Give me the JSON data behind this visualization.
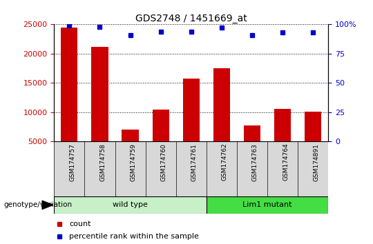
{
  "title": "GDS2748 / 1451669_at",
  "samples": [
    "GSM174757",
    "GSM174758",
    "GSM174759",
    "GSM174760",
    "GSM174761",
    "GSM174762",
    "GSM174763",
    "GSM174764",
    "GSM174891"
  ],
  "counts": [
    24500,
    21200,
    7000,
    10500,
    15800,
    17500,
    7700,
    10600,
    10100
  ],
  "percentile_ranks": [
    99,
    98,
    91,
    94,
    94,
    97,
    91,
    93,
    93
  ],
  "ylim_left": [
    5000,
    25000
  ],
  "ylim_right": [
    0,
    100
  ],
  "yticks_left": [
    5000,
    10000,
    15000,
    20000,
    25000
  ],
  "yticks_right": [
    0,
    25,
    50,
    75,
    100
  ],
  "bar_color": "#cc0000",
  "dot_color": "#0000cc",
  "wt_color": "#c8f0c8",
  "lm_color": "#44dd44",
  "groups": [
    {
      "label": "wild type",
      "start": 0,
      "end": 5
    },
    {
      "label": "Lim1 mutant",
      "start": 5,
      "end": 9
    }
  ],
  "group_label": "genotype/variation",
  "legend_count_label": "count",
  "legend_percentile_label": "percentile rank within the sample",
  "bar_width": 0.55
}
